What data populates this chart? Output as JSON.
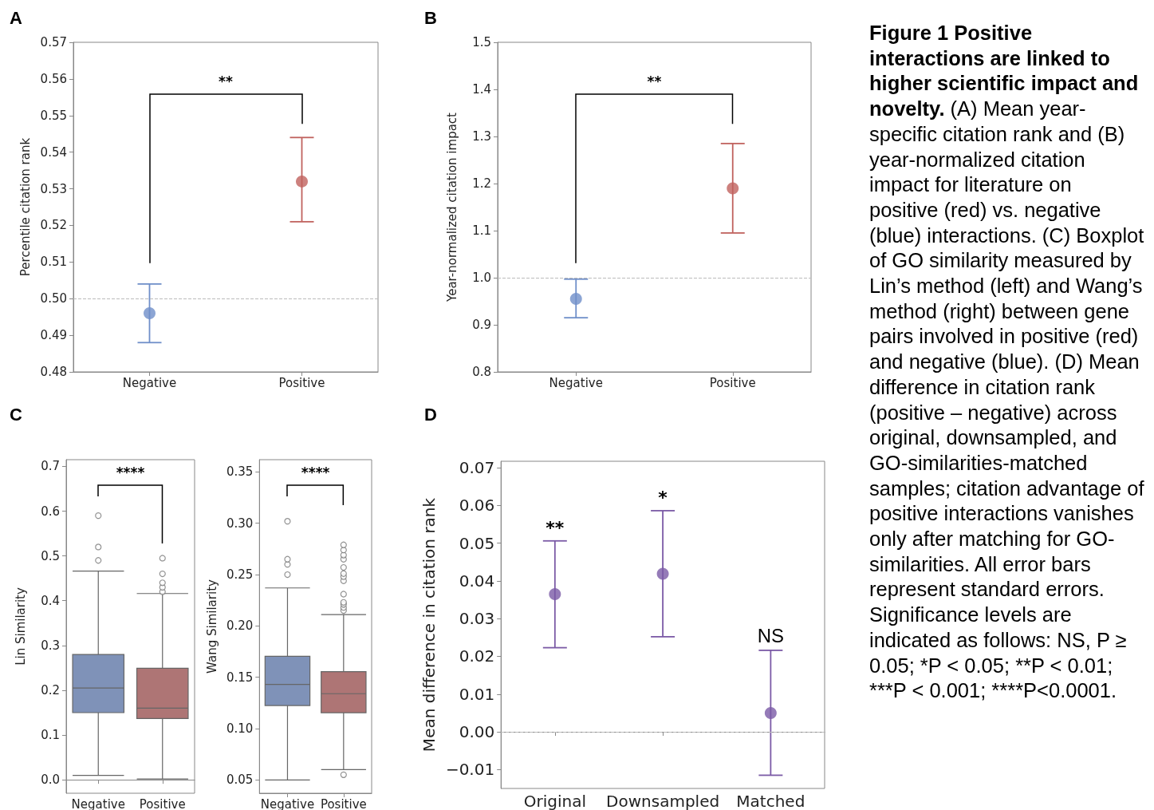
{
  "chart_data": [
    {
      "type": "scatter",
      "title": "A",
      "ylabel": "Percentile citation rank",
      "categories": [
        "Negative",
        "Positive"
      ],
      "values": [
        0.496,
        0.532
      ],
      "colors": [
        "#6f8fc9",
        "#c0625e"
      ],
      "errors": [
        [
          0.488,
          0.504
        ],
        [
          0.521,
          0.544
        ]
      ],
      "marker": "circle",
      "ylim": [
        0.48,
        0.57
      ],
      "yticks": [
        {
          "value": 0.48,
          "label": "0.48"
        },
        {
          "value": 0.49,
          "label": "0.49"
        },
        {
          "value": 0.5,
          "label": "0.50"
        },
        {
          "value": 0.51,
          "label": "0.51"
        },
        {
          "value": 0.52,
          "label": "0.52"
        },
        {
          "value": 0.53,
          "label": "0.53"
        },
        {
          "value": 0.54,
          "label": "0.54"
        },
        {
          "value": 0.55,
          "label": "0.55"
        },
        {
          "value": 0.56,
          "label": "0.56"
        },
        {
          "value": 0.57,
          "label": "0.57"
        }
      ],
      "ref_lines": [
        {
          "axis": "y",
          "value": 0.5,
          "color": "#bbbbbb",
          "line_style": "dashed"
        }
      ],
      "annotations": [
        "**"
      ]
    },
    {
      "type": "scatter",
      "title": "B",
      "ylabel": "Year-normalized citation impact",
      "categories": [
        "Negative",
        "Positive"
      ],
      "values": [
        0.955,
        1.19
      ],
      "colors": [
        "#6f8fc9",
        "#c0625e"
      ],
      "errors": [
        [
          0.915,
          0.997
        ],
        [
          1.095,
          1.285
        ]
      ],
      "marker": "circle",
      "ylim": [
        0.8,
        1.5
      ],
      "yticks": [
        {
          "value": 0.8,
          "label": "0.8"
        },
        {
          "value": 0.9,
          "label": "0.9"
        },
        {
          "value": 1.0,
          "label": "1.0"
        },
        {
          "value": 1.1,
          "label": "1.1"
        },
        {
          "value": 1.2,
          "label": "1.2"
        },
        {
          "value": 1.3,
          "label": "1.3"
        },
        {
          "value": 1.4,
          "label": "1.4"
        },
        {
          "value": 1.5,
          "label": "1.5"
        }
      ],
      "ref_lines": [
        {
          "axis": "y",
          "value": 1.0,
          "color": "#bbbbbb",
          "line_style": "dashed"
        }
      ],
      "annotations": [
        "**"
      ]
    },
    {
      "type": "box",
      "title": "C",
      "ylabel": "Lin Similarity",
      "categories": [
        "Negative",
        "Positive"
      ],
      "colors": [
        "#7f92b8",
        "#ae7575"
      ],
      "boxes": [
        {
          "low": 0.01,
          "q1": 0.15,
          "median": 0.205,
          "q3": 0.28,
          "high": 0.466,
          "outliers": [
            0.49,
            0.52,
            0.59
          ]
        },
        {
          "low": 0.002,
          "q1": 0.137,
          "median": 0.16,
          "q3": 0.249,
          "high": 0.416,
          "outliers": [
            0.42,
            0.43,
            0.44,
            0.46,
            0.495
          ]
        }
      ],
      "ylim": [
        -0.03,
        0.715
      ],
      "yticks": [
        {
          "value": 0,
          "label": "0.0"
        },
        {
          "value": 0.1,
          "label": "0.1"
        },
        {
          "value": 0.2,
          "label": "0.2"
        },
        {
          "value": 0.3,
          "label": "0.3"
        },
        {
          "value": 0.4,
          "label": "0.4"
        },
        {
          "value": 0.5,
          "label": "0.5"
        },
        {
          "value": 0.6,
          "label": "0.6"
        },
        {
          "value": 0.7,
          "label": "0.7"
        }
      ],
      "annotations": [
        "****"
      ]
    },
    {
      "type": "box",
      "ylabel": "Wang Similarity",
      "categories": [
        "Negative",
        "Positive"
      ],
      "colors": [
        "#7f92b8",
        "#ae7575"
      ],
      "boxes": [
        {
          "low": 0.05,
          "q1": 0.1225,
          "median": 0.143,
          "q3": 0.1705,
          "high": 0.237,
          "outliers": [
            0.25,
            0.26,
            0.265,
            0.302
          ]
        },
        {
          "low": 0.06,
          "q1": 0.1155,
          "median": 0.134,
          "q3": 0.1555,
          "high": 0.211,
          "outliers": [
            0.055,
            0.215,
            0.218,
            0.221,
            0.223,
            0.231,
            0.244,
            0.248,
            0.251,
            0.257,
            0.265,
            0.269,
            0.274,
            0.279
          ]
        }
      ],
      "ylim": [
        0.037,
        0.362
      ],
      "yticks": [
        {
          "value": 0.05,
          "label": "0.05"
        },
        {
          "value": 0.1,
          "label": "0.10"
        },
        {
          "value": 0.15,
          "label": "0.15"
        },
        {
          "value": 0.2,
          "label": "0.20"
        },
        {
          "value": 0.25,
          "label": "0.25"
        },
        {
          "value": 0.3,
          "label": "0.30"
        },
        {
          "value": 0.35,
          "label": "0.35"
        }
      ],
      "annotations": [
        "****"
      ]
    },
    {
      "type": "scatter",
      "title": "D",
      "ylabel": "Mean difference in citation rank",
      "categories": [
        "Original",
        "Downsampled",
        "Matched"
      ],
      "values": [
        0.0365,
        0.0419,
        0.005
      ],
      "colors": [
        "#7b5aa6",
        "#7b5aa6",
        "#7b5aa6"
      ],
      "errors": [
        [
          0.0223,
          0.0506
        ],
        [
          0.0252,
          0.0586
        ],
        [
          -0.0115,
          0.0216
        ]
      ],
      "marker": "circle",
      "ylim": [
        -0.015,
        0.0717
      ],
      "yticks": [
        {
          "value": -0.01,
          "label": "−0.01"
        },
        {
          "value": 0,
          "label": "0.00"
        },
        {
          "value": 0.01,
          "label": "0.01"
        },
        {
          "value": 0.02,
          "label": "0.02"
        },
        {
          "value": 0.03,
          "label": "0.03"
        },
        {
          "value": 0.04,
          "label": "0.04"
        },
        {
          "value": 0.05,
          "label": "0.05"
        },
        {
          "value": 0.06,
          "label": "0.06"
        },
        {
          "value": 0.07,
          "label": "0.07"
        }
      ],
      "ref_lines": [
        {
          "axis": "y",
          "value": 0,
          "color": "#bbbbbb",
          "line_style": "dashed"
        }
      ],
      "annotations": [
        "**",
        "*",
        "NS"
      ]
    },
    {
      "type": "other",
      "title": "Figure 1 Positive interactions are linked to higher scientific impact and novelty.",
      "annotations": [
        "(A) Mean year-specific citation rank and (B) year-normalized citation impact for literature on positive (red) vs. negative (blue) interactions. (C) Boxplot of GO similarity measured by Lin’s method (left) and Wang’s method (right) between gene pairs involved in positive (red) and negative (blue). (D) Mean difference in citation rank (positive – negative) across original, downsampled, and GO-similarities-matched samples; citation advantage of positive interactions vanishes only after matching for GO-similarities. All error bars represent standard errors. Significance levels are indicated as follows: NS, P ≥ 0.05; *P < 0.05; **P < 0.01; ***P < 0.001; ****P<0.0001."
      ]
    }
  ]
}
